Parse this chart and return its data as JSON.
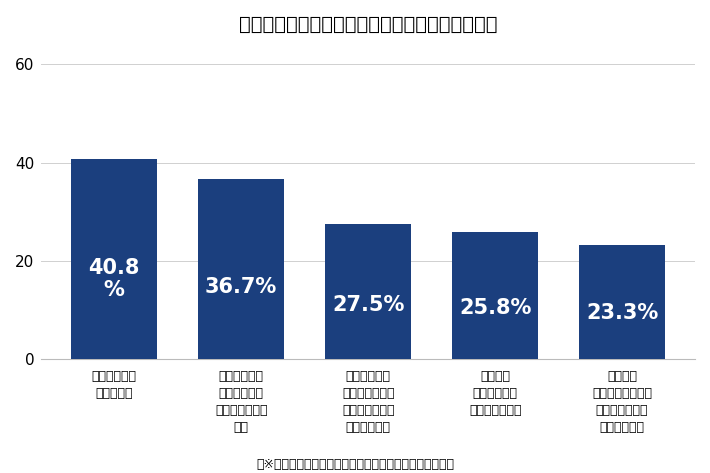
{
  "title": "リース会社を決定する際、決め手となった点は？",
  "categories": [
    "欲しい車種が\nあったから",
    "そのサービス\nサイトが信用\nできそうだった\nから",
    "担当の説明が\nわかりやすく、\n電話での応対が\n良かったから",
    "馴染みの\n販売店で契約\nしたかったから",
    "車種選び\nやオプション選び\nの相談に乗って\nもらえたから"
  ],
  "values": [
    40.8,
    36.7,
    27.5,
    25.8,
    23.3
  ],
  "bar_color": "#1b3f7e",
  "bar_labels": [
    "40.8\n%",
    "36.7%",
    "27.5%",
    "25.8%",
    "23.3%"
  ],
  "ylabel_ticks": [
    0,
    20,
    40,
    60
  ],
  "ylim": [
    0,
    63
  ],
  "footnote": "（※複数回答可。グラフは総回答数に対する割合で作成）",
  "background_color": "#ffffff",
  "label_fontsize": 15,
  "tick_fontsize": 11,
  "cat_fontsize": 9,
  "title_fontsize": 14,
  "footnote_fontsize": 9
}
